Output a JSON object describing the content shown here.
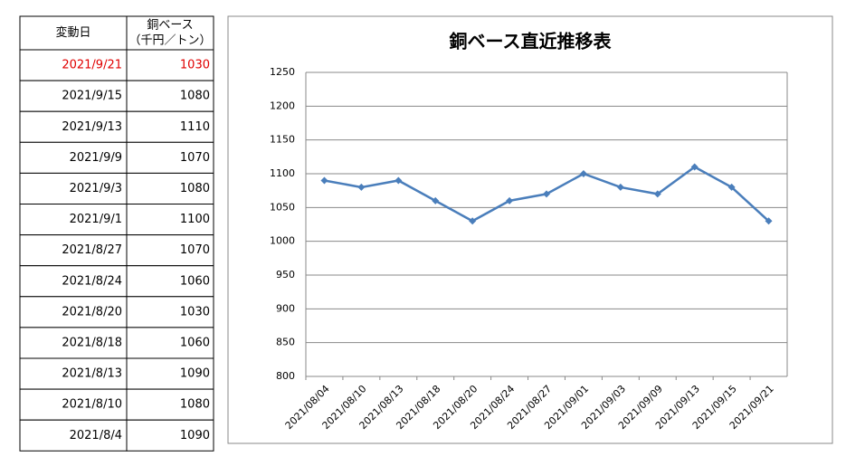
{
  "table": {
    "header": [
      [
        "変動日"
      ],
      [
        "銅ベース",
        "（千円／トン）"
      ]
    ],
    "rows": [
      [
        "2021/9/21",
        1030
      ],
      [
        "2021/9/15",
        1080
      ],
      [
        "2021/9/13",
        1110
      ],
      [
        "2021/9/9",
        1070
      ],
      [
        "2021/9/3",
        1080
      ],
      [
        "2021/9/1",
        1100
      ],
      [
        "2021/8/27",
        1070
      ],
      [
        "2021/8/24",
        1060
      ],
      [
        "2021/8/20",
        1030
      ],
      [
        "2021/8/18",
        1060
      ],
      [
        "2021/8/13",
        1090
      ],
      [
        "2021/8/10",
        1080
      ],
      [
        "2021/8/4",
        1090
      ]
    ]
  },
  "chart_data": {
    "type": "line",
    "title": "銅ベース直近推移表",
    "categories": [
      "2021/08/04",
      "2021/08/10",
      "2021/08/13",
      "2021/08/18",
      "2021/08/20",
      "2021/08/24",
      "2021/08/27",
      "2021/09/01",
      "2021/09/03",
      "2021/09/09",
      "2021/09/13",
      "2021/09/15",
      "2021/09/21"
    ],
    "series": [
      {
        "color": "#4a7ebb",
        "values": [
          1090,
          1080,
          1090,
          1060,
          1030,
          1060,
          1070,
          1100,
          1080,
          1070,
          1110,
          1080,
          1030
        ]
      }
    ],
    "ylim": [
      800,
      1250
    ],
    "yticks": [
      800,
      850,
      900,
      950,
      1000,
      1050,
      1100,
      1150,
      1200,
      1250
    ],
    "grid": true
  }
}
